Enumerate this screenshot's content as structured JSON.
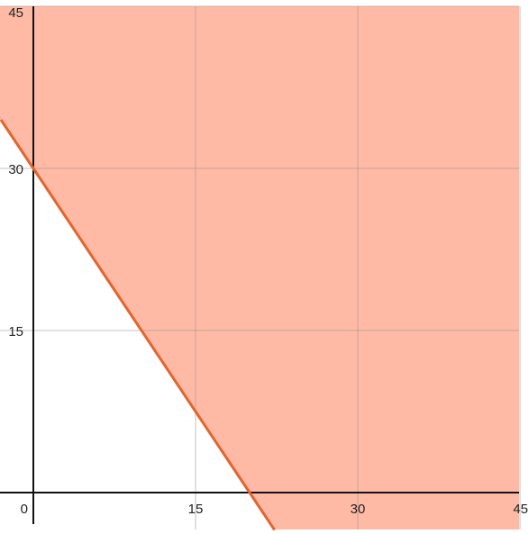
{
  "chart_data": {
    "type": "area",
    "title": "",
    "xlabel": "",
    "ylabel": "",
    "xlim": [
      -3,
      45
    ],
    "ylim": [
      -3,
      45
    ],
    "grid": true,
    "legend": "none",
    "x_ticks": [
      {
        "value": 0,
        "label": "0"
      },
      {
        "value": 15,
        "label": "15"
      },
      {
        "value": 30,
        "label": "30"
      },
      {
        "value": 45,
        "label": "45"
      }
    ],
    "y_ticks": [
      {
        "value": 15,
        "label": "15"
      },
      {
        "value": 30,
        "label": "30"
      },
      {
        "value": 45,
        "label": "45"
      }
    ],
    "boundary_line": {
      "points": [
        [
          -3,
          34.5
        ],
        [
          0,
          30
        ],
        [
          20,
          0
        ],
        [
          22.3,
          -3.45
        ]
      ],
      "color": "#e8622c"
    },
    "shaded_region": {
      "description_side": "above boundary line",
      "color": "#ffbaa6"
    }
  }
}
